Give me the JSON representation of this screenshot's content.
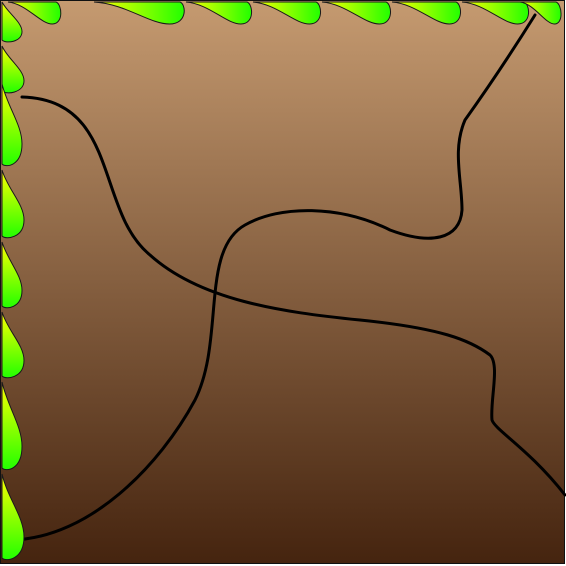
{
  "scene": {
    "background": {
      "gradient_top": "#c59a70",
      "gradient_bottom": "#45240f",
      "border": "#111111"
    },
    "curves": {
      "stroke": "#000000",
      "count": 2
    },
    "leaves": {
      "fill_light": "#ffff00",
      "fill_dark": "#22ff00",
      "outline": "#1a1a1a",
      "top_edge_count": 9,
      "left_edge_count": 8
    }
  }
}
